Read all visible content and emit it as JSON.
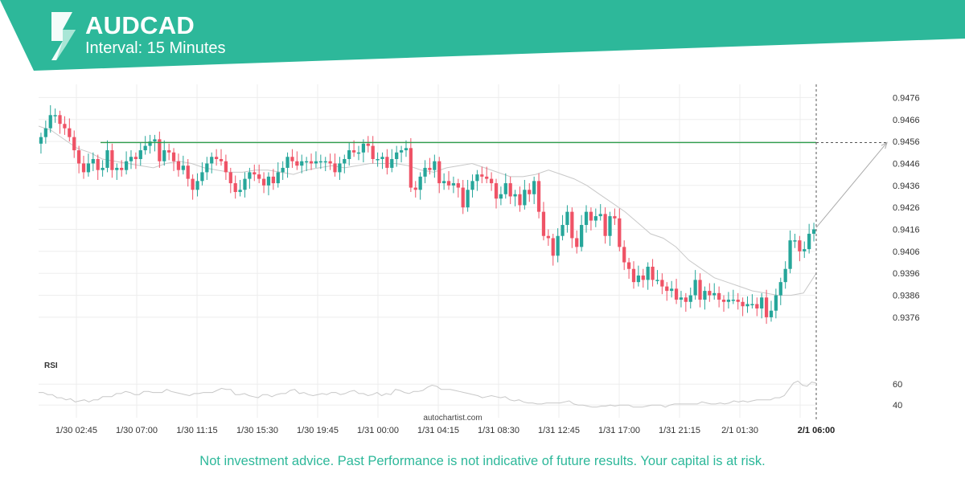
{
  "header": {
    "symbol": "AUDCAD",
    "interval": "Interval: 15 Minutes",
    "logo": "autochartist-logo",
    "brand_color": "#2db89a"
  },
  "footer": {
    "disclaimer": "Not investment advice. Past Performance is not indicative of future results. Your capital is at risk."
  },
  "watermark": "autochartist.com",
  "chart_data": [
    {
      "type": "candlestick",
      "title": "AUDCAD",
      "interval": "15 Minutes",
      "yticks": [
        "0.9476",
        "0.9466",
        "0.9456",
        "0.9446",
        "0.9436",
        "0.9426",
        "0.9416",
        "0.9406",
        "0.9396",
        "0.9386",
        "0.9376"
      ],
      "ylim": [
        0.9365,
        0.9482
      ],
      "xticks": [
        "1/30 02:45",
        "1/30 07:00",
        "1/30 11:15",
        "1/30 15:30",
        "1/30 19:45",
        "1/31 00:00",
        "1/31 04:15",
        "1/31 08:30",
        "1/31 12:45",
        "1/31 17:00",
        "1/31 21:15",
        "2/1 01:30",
        "2/1 06:00"
      ],
      "current_time_label": "2/1 06:00",
      "grid": true,
      "up_color": "#26a69a",
      "down_color": "#ef5366",
      "resistance_level": 0.94555,
      "projection": {
        "from": 0.94168,
        "to": 0.94555
      },
      "close_series": [
        0.9458,
        0.9462,
        0.9468,
        0.9468,
        0.9464,
        0.9462,
        0.9458,
        0.9452,
        0.9446,
        0.9442,
        0.9446,
        0.9448,
        0.9443,
        0.9444,
        0.9452,
        0.9443,
        0.9444,
        0.9443,
        0.9447,
        0.9449,
        0.9448,
        0.9452,
        0.9454,
        0.9456,
        0.9457,
        0.9447,
        0.9452,
        0.9451,
        0.9447,
        0.9443,
        0.9445,
        0.9439,
        0.9434,
        0.9438,
        0.9442,
        0.9446,
        0.9449,
        0.9448,
        0.9447,
        0.9442,
        0.9437,
        0.9433,
        0.9434,
        0.9439,
        0.9442,
        0.9441,
        0.9439,
        0.9436,
        0.944,
        0.9437,
        0.9442,
        0.9444,
        0.9449,
        0.9447,
        0.9445,
        0.9447,
        0.9447,
        0.9446,
        0.9447,
        0.9447,
        0.9447,
        0.9446,
        0.9442,
        0.9446,
        0.9448,
        0.9452,
        0.9451,
        0.9451,
        0.9455,
        0.9454,
        0.9448,
        0.9448,
        0.9449,
        0.9444,
        0.9448,
        0.9451,
        0.9452,
        0.9453,
        0.9435,
        0.9434,
        0.944,
        0.9444,
        0.9443,
        0.9447,
        0.9437,
        0.9438,
        0.9436,
        0.9437,
        0.9435,
        0.9426,
        0.9434,
        0.9438,
        0.9441,
        0.944,
        0.9439,
        0.9437,
        0.943,
        0.9432,
        0.9437,
        0.9431,
        0.9432,
        0.9427,
        0.9434,
        0.9432,
        0.9438,
        0.9424,
        0.9413,
        0.9412,
        0.9404,
        0.9413,
        0.9418,
        0.9424,
        0.9412,
        0.9408,
        0.9418,
        0.9424,
        0.942,
        0.9422,
        0.9423,
        0.9413,
        0.9422,
        0.9421,
        0.9408,
        0.9401,
        0.9398,
        0.9392,
        0.9395,
        0.9393,
        0.9399,
        0.9393,
        0.9393,
        0.939,
        0.9388,
        0.9389,
        0.9384,
        0.9385,
        0.9383,
        0.9386,
        0.9393,
        0.9384,
        0.9388,
        0.9386,
        0.9387,
        0.9384,
        0.9383,
        0.9384,
        0.9384,
        0.9383,
        0.9381,
        0.9382,
        0.9382,
        0.938,
        0.9385,
        0.9376,
        0.9379,
        0.9386,
        0.9392,
        0.9398,
        0.9411,
        0.9411,
        0.9406,
        0.9407,
        0.9414,
        0.9416
      ],
      "moving_average": [
        0.9463,
        0.9461,
        0.9457,
        0.9453,
        0.9451,
        0.9448,
        0.9447,
        0.9446,
        0.9445,
        0.9444,
        0.9446,
        0.9447,
        0.9446,
        0.9444,
        0.9443,
        0.9442,
        0.9442,
        0.9443,
        0.9443,
        0.9442,
        0.9441,
        0.9443,
        0.9444,
        0.9445,
        0.9444,
        0.9445,
        0.9446,
        0.9446,
        0.9446,
        0.9445,
        0.9443,
        0.9442,
        0.9444,
        0.9445,
        0.9446,
        0.9444,
        0.9442,
        0.944,
        0.944,
        0.9441,
        0.9443,
        0.9441,
        0.9439,
        0.9436,
        0.9432,
        0.9428,
        0.9424,
        0.9419,
        0.9414,
        0.9412,
        0.9408,
        0.9402,
        0.9398,
        0.9394,
        0.9392,
        0.939,
        0.9388,
        0.9387,
        0.9386,
        0.9386,
        0.9387,
        0.9396
      ]
    },
    {
      "type": "line",
      "title": "RSI",
      "yticks": [
        "60",
        "40"
      ],
      "ylim": [
        34,
        74
      ],
      "values": [
        52,
        52,
        50,
        50,
        47,
        47,
        45,
        46,
        43,
        44,
        45,
        43,
        45,
        45,
        48,
        48,
        48,
        51,
        51,
        53,
        52,
        50,
        50,
        53,
        53,
        52,
        52,
        52,
        55,
        53,
        52,
        51,
        50,
        49,
        51,
        51,
        52,
        52,
        52,
        54,
        56,
        55,
        55,
        50,
        50,
        51,
        49,
        48,
        47,
        50,
        50,
        48,
        50,
        51,
        51,
        54,
        55,
        51,
        52,
        50,
        49,
        50,
        51,
        50,
        52,
        52,
        50,
        51,
        53,
        54,
        51,
        51,
        49,
        50,
        52,
        49,
        51,
        50,
        55,
        54,
        52,
        51,
        53,
        53,
        54,
        57,
        59,
        58,
        55,
        55,
        55,
        54,
        53,
        52,
        51,
        50,
        49,
        47,
        48,
        49,
        48,
        47,
        48,
        45,
        44,
        45,
        43,
        42,
        42,
        41,
        41,
        42,
        42,
        42,
        42,
        43,
        44,
        41,
        40,
        40,
        39,
        38,
        38,
        39,
        39,
        40,
        39,
        40,
        40,
        40,
        38,
        38,
        38,
        39,
        40,
        40,
        40,
        38,
        40,
        41,
        41,
        41,
        41,
        41,
        41,
        43,
        42,
        41,
        41,
        42,
        41,
        42,
        44,
        43,
        44,
        43,
        44,
        45,
        45,
        45,
        45,
        47,
        47,
        49,
        55,
        61,
        63,
        59,
        58,
        62,
        61
      ]
    }
  ]
}
